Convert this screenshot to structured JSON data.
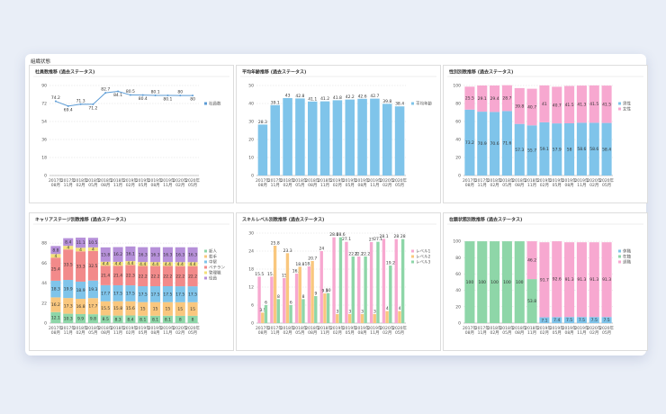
{
  "page_title": "組織状態",
  "chart_data": [
    {
      "type": "line",
      "title": "社員数推移 (過去ステータス)",
      "categories": [
        "2017年08月",
        "2017年11月",
        "2018年02月",
        "2018年05月",
        "2018年08月",
        "2018年11月",
        "2019年02月",
        "2019年05月",
        "2019年08月",
        "2019年11月",
        "2020年02月",
        "2020年05月"
      ],
      "series": [
        {
          "name": "社員数",
          "color": "#5b9bd5",
          "values": [
            74.2,
            69.4,
            71.3,
            71.2,
            82.7,
            84.1,
            80.5,
            80.4,
            80.1,
            80.1,
            80,
            80
          ]
        }
      ],
      "ylim": [
        0,
        90
      ],
      "yticks": [
        0,
        18,
        36,
        54,
        72,
        90
      ],
      "grid": true,
      "legend": "right"
    },
    {
      "type": "bar",
      "title": "平均年齢推移 (過去ステータス)",
      "categories": [
        "2017年08月",
        "2017年11月",
        "2018年02月",
        "2018年05月",
        "2018年08月",
        "2018年11月",
        "2019年02月",
        "2019年05月",
        "2019年08月",
        "2019年11月",
        "2020年02月",
        "2020年05月"
      ],
      "series": [
        {
          "name": "平均年齢",
          "color": "#7fc4ea",
          "values": [
            28.3,
            39.1,
            43,
            42.8,
            41.1,
            41.2,
            41.8,
            42.2,
            42.6,
            42.7,
            39.8,
            38.4
          ]
        }
      ],
      "ylim": [
        0,
        50
      ],
      "yticks": [
        0,
        10,
        20,
        30,
        40,
        50
      ],
      "grid": true,
      "legend": "right"
    },
    {
      "type": "stacked",
      "title": "性別別数推移 (過去ステータス)",
      "categories": [
        "2017年08月",
        "2017年11月",
        "2018年02月",
        "2018年05月",
        "2018年08月",
        "2018年11月",
        "2019年02月",
        "2019年05月",
        "2019年08月",
        "2019年11月",
        "2020年02月",
        "2020年05月"
      ],
      "series": [
        {
          "name": "男性",
          "color": "#7fc4ea",
          "values": [
            73.2,
            70.9,
            70.6,
            71.6,
            57.3,
            55.7,
            59.1,
            57.9,
            58,
            58.6,
            58.6,
            58.4
          ]
        },
        {
          "name": "女性",
          "color": "#f7a8d0",
          "values": [
            25.5,
            29.1,
            29.4,
            28.7,
            39.8,
            40.7,
            41,
            40.7,
            41.5,
            41.3,
            41.5,
            41.5
          ]
        }
      ],
      "ylim": [
        0,
        100
      ],
      "yticks": [
        0,
        20,
        40,
        60,
        80,
        100
      ],
      "grid": true,
      "legend": "right"
    },
    {
      "type": "stacked",
      "title": "キャリアステージ別数推移 (過去ステータス)",
      "categories": [
        "2017年08月",
        "2017年11月",
        "2018年02月",
        "2018年05月",
        "2018年08月",
        "2018年11月",
        "2019年02月",
        "2019年05月",
        "2019年08月",
        "2019年11月",
        "2020年02月",
        "2020年05月"
      ],
      "series": [
        {
          "name": "新人",
          "color": "#8ed6a8",
          "values": [
            12.1,
            10.3,
            9.9,
            9.8,
            8.5,
            8.3,
            8.4,
            8.1,
            8.1,
            8.1,
            8,
            8
          ]
        },
        {
          "name": "若手",
          "color": "#f9c77e",
          "values": [
            16.2,
            17.3,
            16.8,
            17.7,
            15.5,
            15.8,
            15.6,
            15,
            15,
            15,
            15,
            15
          ]
        },
        {
          "name": "中堅",
          "color": "#7fc4ea",
          "values": [
            18.3,
            19.9,
            18.9,
            19.3,
            17.7,
            17.5,
            17.5,
            17.5,
            17.5,
            17.5,
            17.5,
            17.5
          ]
        },
        {
          "name": "ベテラン",
          "color": "#f28a8a",
          "values": [
            25.4,
            33.5,
            33.3,
            32.5,
            21.4,
            21.4,
            22.3,
            22.2,
            22.2,
            22.2,
            22.2,
            22.2
          ]
        },
        {
          "name": "管理職",
          "color": "#f3e07a",
          "values": [
            4,
            4,
            4,
            4,
            4.4,
            4.4,
            4.4,
            4.4,
            4.4,
            4.4,
            4.4,
            4.4
          ]
        },
        {
          "name": "役員",
          "color": "#b690d9",
          "values": [
            8.8,
            8.4,
            11.1,
            10.5,
            15.8,
            16.2,
            16.1,
            16.3,
            16.3,
            16.3,
            16.3,
            16.3
          ]
        }
      ],
      "ylim": [
        0,
        99
      ],
      "yticks": [
        0,
        22,
        44,
        66,
        88
      ],
      "grid": true,
      "legend": "right"
    },
    {
      "type": "grouped",
      "title": "スキルレベル別数推移 (過去ステータス)",
      "categories": [
        "2017年08月",
        "2017年11月",
        "2018年02月",
        "2018年05月",
        "2018年08月",
        "2018年11月",
        "2019年02月",
        "2019年05月",
        "2019年08月",
        "2019年11月",
        "2020年02月",
        "2020年05月"
      ],
      "series": [
        {
          "name": "レベル1",
          "color": "#f7a8d0",
          "values": [
            15.5,
            15.5,
            15,
            16.5,
            18.9,
            24,
            28.6,
            27.1,
            22.2,
            27,
            28.1,
            28
          ]
        },
        {
          "name": "レベル2",
          "color": "#f9c77e",
          "values": [
            3.5,
            25.8,
            23.3,
            18.8,
            20.7,
            9.9,
            3,
            3,
            3,
            3,
            4,
            4
          ]
        },
        {
          "name": "レベル3",
          "color": "#8ed6a8",
          "values": [
            6,
            8,
            6,
            8,
            9,
            10,
            28.6,
            22.2,
            22.2,
            27.1,
            19.2,
            28
          ]
        }
      ],
      "ylim": [
        0,
        30
      ],
      "yticks": [
        0,
        6,
        12,
        18,
        24,
        30
      ],
      "grid": true,
      "legend": "right"
    },
    {
      "type": "stacked",
      "title": "在籍状態別数推移 (過去ステータス)",
      "categories": [
        "2017年08月",
        "2017年11月",
        "2018年02月",
        "2018年05月",
        "2018年08月",
        "2018年11月",
        "2019年02月",
        "2019年05月",
        "2019年08月",
        "2019年11月",
        "2020年02月",
        "2020年05月"
      ],
      "series": [
        {
          "name": "休職",
          "color": "#7fc4ea",
          "values": [
            0,
            0,
            0,
            0,
            0,
            0,
            7.1,
            7.4,
            7.5,
            7.5,
            7.5,
            7.5
          ]
        },
        {
          "name": "在籍",
          "color": "#8ed6a8",
          "values": [
            100,
            100,
            100,
            100,
            100,
            53.8,
            0,
            0,
            0,
            0,
            0,
            0
          ]
        },
        {
          "name": "退職",
          "color": "#f7a8d0",
          "values": [
            0,
            0,
            0,
            0,
            0,
            46.2,
            91.7,
            92.6,
            91.3,
            91.3,
            91.3,
            91.3
          ]
        }
      ],
      "ylim": [
        0,
        110
      ],
      "yticks": [
        0,
        20,
        40,
        60,
        80,
        100
      ],
      "grid": true,
      "legend": "right"
    }
  ]
}
